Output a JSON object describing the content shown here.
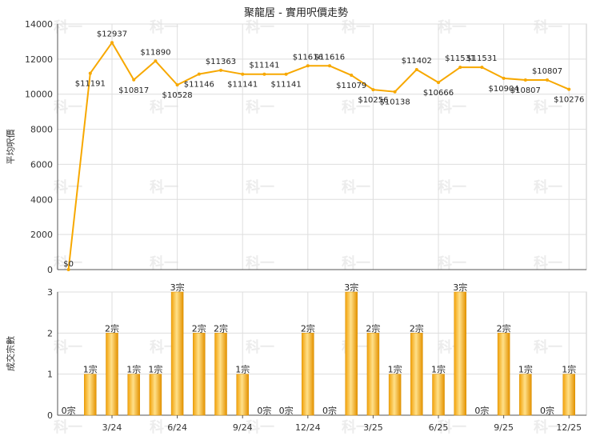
{
  "chart_data": {
    "title": "聚龍居 - 實用呎價走勢",
    "months": [
      "1/24",
      "2/24",
      "3/24",
      "4/24",
      "5/24",
      "6/24",
      "7/24",
      "8/24",
      "9/24",
      "10/24",
      "11/24",
      "12/24",
      "1/25",
      "2/25",
      "3/25",
      "4/25",
      "5/25",
      "6/25",
      "7/25",
      "8/25",
      "9/25",
      "10/25",
      "11/25",
      "12/25"
    ],
    "x_tick_labels": [
      "3/24",
      "6/24",
      "9/24",
      "12/24",
      "3/25",
      "6/25",
      "9/25",
      "12/25"
    ],
    "price_panel": {
      "type": "line",
      "ylabel": "平均呎價",
      "ylim": [
        0,
        14000
      ],
      "yticks": [
        0,
        2000,
        4000,
        6000,
        8000,
        10000,
        12000,
        14000
      ],
      "values": [
        0,
        11191,
        12937,
        10817,
        11890,
        10528,
        11146,
        11363,
        11141,
        11141,
        11141,
        11616,
        11616,
        11079,
        10256,
        10138,
        11402,
        10666,
        11531,
        11531,
        10904,
        10807,
        10807,
        10276
      ],
      "labels": [
        "$0",
        "$11191",
        "$12937",
        "$10817",
        "$11890",
        "$10528",
        "$11146",
        "$11363",
        "$11141",
        "$11141",
        "$11141",
        "$11616",
        "$11616",
        "$11079",
        "$10256",
        "$10138",
        "$11402",
        "$10666",
        "$11531",
        "$11531",
        "$10904",
        "$10807",
        "$10807",
        "$10276"
      ],
      "color": "#f7a800"
    },
    "volume_panel": {
      "type": "bar",
      "ylabel": "成交宗數",
      "ylim": [
        0,
        3
      ],
      "yticks": [
        0,
        1,
        2,
        3
      ],
      "values": [
        0,
        1,
        2,
        1,
        1,
        3,
        2,
        2,
        1,
        0,
        0,
        2,
        0,
        3,
        2,
        1,
        2,
        1,
        3,
        0,
        2,
        1,
        0,
        1
      ],
      "labels": [
        "0宗",
        "1宗",
        "2宗",
        "1宗",
        "1宗",
        "3宗",
        "2宗",
        "2宗",
        "1宗",
        "0宗",
        "0宗",
        "2宗",
        "0宗",
        "3宗",
        "2宗",
        "1宗",
        "2宗",
        "1宗",
        "3宗",
        "0宗",
        "2宗",
        "1宗",
        "0宗",
        "1宗"
      ],
      "color": "#f7a800"
    },
    "grid": true,
    "watermark": "科一"
  }
}
